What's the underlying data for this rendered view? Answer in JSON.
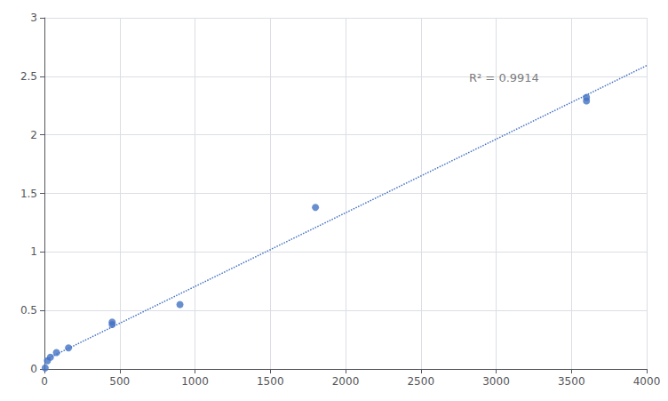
{
  "chart_data": {
    "type": "scatter",
    "series": [
      {
        "type": "scatter",
        "color": "#4472C4",
        "marker": "circle",
        "x": [
          5,
          20,
          40,
          80,
          160,
          450,
          450,
          900,
          1800,
          3600,
          3600
        ],
        "values": [
          0.01,
          0.07,
          0.1,
          0.14,
          0.18,
          0.38,
          0.4,
          0.55,
          1.38,
          2.29,
          2.32
        ]
      },
      {
        "type": "line",
        "color": "#4472C4",
        "line_style": "dotted",
        "x": [
          0,
          4000
        ],
        "values": [
          0.0758,
          2.5921
        ]
      }
    ],
    "annotations": [
      {
        "text": "R² = 0.9914",
        "x": 2820,
        "y": 2.44,
        "color": "#595959"
      }
    ],
    "xlim": [
      0,
      4000
    ],
    "ylim": [
      0,
      3
    ],
    "xticks": [
      0,
      500,
      1000,
      1500,
      2000,
      2500,
      3000,
      3500,
      4000
    ],
    "yticks": [
      0,
      0.5,
      1,
      1.5,
      2,
      2.5,
      3
    ],
    "grid": true
  }
}
